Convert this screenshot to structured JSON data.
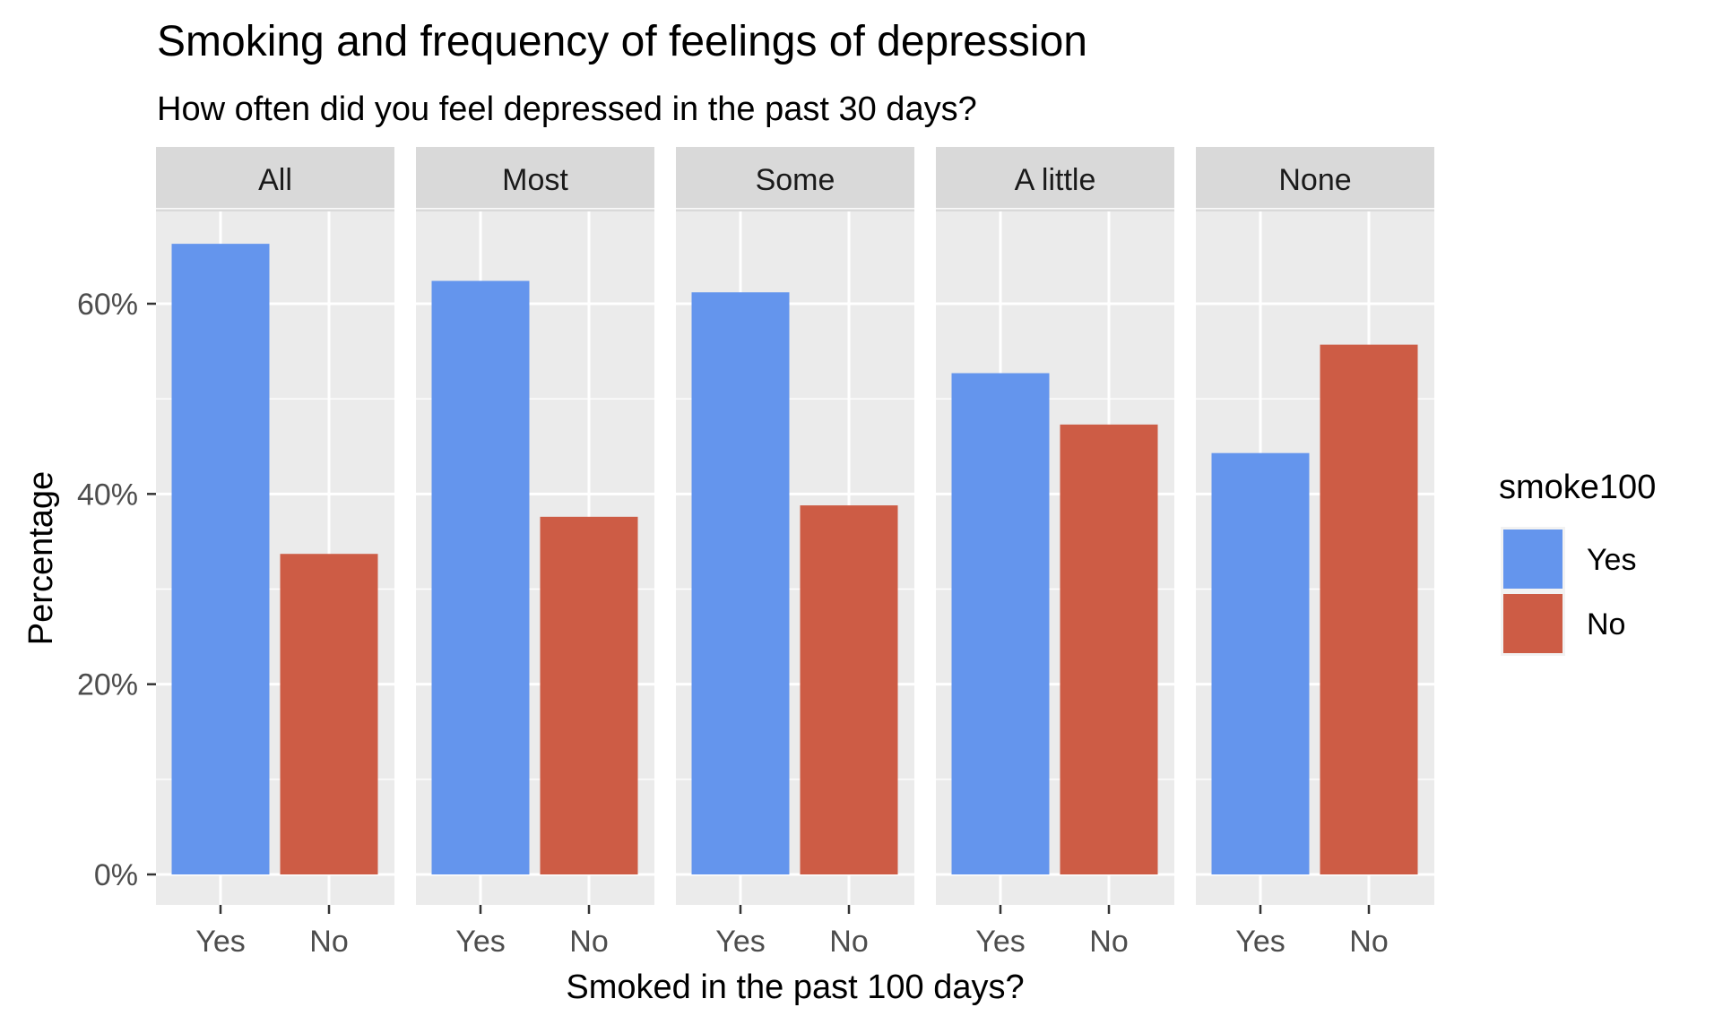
{
  "chart_data": {
    "type": "bar",
    "title": "Smoking and frequency of feelings of depression",
    "subtitle": "How often did you feel depressed in the past 30 days?",
    "xlabel": "Smoked in the past 100 days?",
    "ylabel": "Percentage",
    "ylim": [
      0,
      72
    ],
    "y_ticks": [
      0,
      20,
      40,
      60
    ],
    "y_tick_labels": [
      "0%",
      "20%",
      "40%",
      "60%"
    ],
    "categories": [
      "Yes",
      "No"
    ],
    "facets": [
      {
        "label": "All",
        "values": [
          66.3,
          33.7
        ]
      },
      {
        "label": "Most",
        "values": [
          62.4,
          37.6
        ]
      },
      {
        "label": "Some",
        "values": [
          61.2,
          38.8
        ]
      },
      {
        "label": "A little",
        "values": [
          52.7,
          47.3
        ]
      },
      {
        "label": "None",
        "values": [
          44.3,
          55.7
        ]
      }
    ],
    "legend": {
      "title": "smoke100",
      "position": "right",
      "items": [
        {
          "label": "Yes",
          "color": "#6495ED"
        },
        {
          "label": "No",
          "color": "#CD5C45"
        }
      ]
    },
    "colors": {
      "Yes": "#6495ED",
      "No": "#CD5C45"
    },
    "grid": true
  }
}
